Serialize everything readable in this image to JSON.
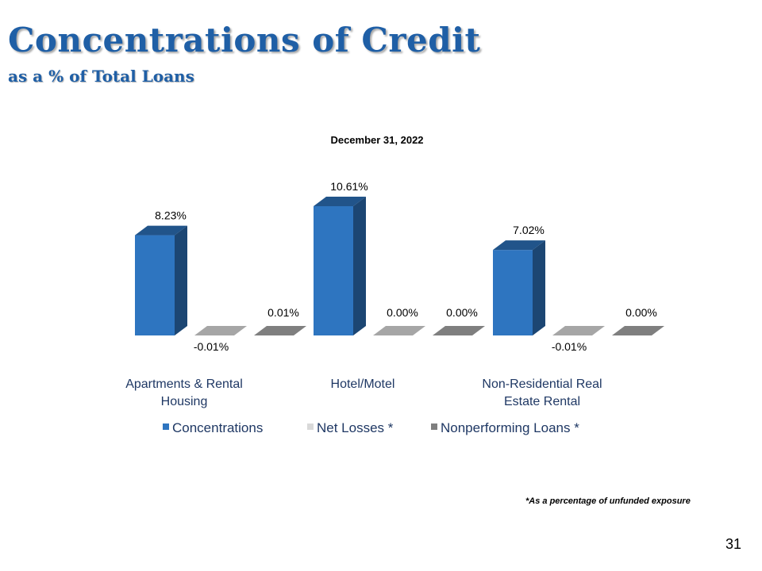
{
  "slide": {
    "title": "Concentrations of Credit",
    "subtitle": "as a % of Total Loans",
    "footnote": "*As a percentage of unfunded exposure",
    "page_number": "31"
  },
  "colors": {
    "title": "#1f5fa6",
    "concentrations": "#2e75c0",
    "net_losses": "#a6a6a6",
    "nonperforming": "#7f7f7f"
  },
  "chart_data": {
    "type": "bar",
    "title": "December 31, 2022",
    "categories": [
      [
        "Apartments & Rental",
        "Housing"
      ],
      [
        "Hotel/Motel"
      ],
      [
        "Non-Residential Real",
        "Estate Rental"
      ]
    ],
    "series": [
      {
        "name": "Concentrations",
        "values": [
          8.23,
          10.61,
          7.02
        ],
        "labels": [
          "8.23%",
          "10.61%",
          "7.02%"
        ],
        "color": "#2e75c0"
      },
      {
        "name": "Net Losses *",
        "values": [
          -0.01,
          0.0,
          -0.01
        ],
        "labels": [
          "-0.01%",
          "0.00%",
          "-0.01%"
        ],
        "color": "#a6a6a6"
      },
      {
        "name": "Nonperforming Loans *",
        "values": [
          0.01,
          0.0,
          0.0
        ],
        "labels": [
          "0.01%",
          "0.00%",
          "0.00%"
        ],
        "color": "#7f7f7f"
      }
    ],
    "ylim": [
      0,
      12
    ],
    "grid": false,
    "legend_position": "bottom",
    "xlabel": "",
    "ylabel": ""
  }
}
